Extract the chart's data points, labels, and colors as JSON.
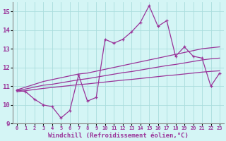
{
  "xlabel": "Windchill (Refroidissement éolien,°C)",
  "x_values": [
    0,
    1,
    2,
    3,
    4,
    5,
    6,
    7,
    8,
    9,
    10,
    11,
    12,
    13,
    14,
    15,
    16,
    17,
    18,
    19,
    20,
    21,
    22,
    23
  ],
  "main_line": [
    10.8,
    10.7,
    10.3,
    10.0,
    9.9,
    9.3,
    9.7,
    11.6,
    10.2,
    10.4,
    13.5,
    13.3,
    13.5,
    13.9,
    14.4,
    15.3,
    14.2,
    14.5,
    12.6,
    13.1,
    12.6,
    12.5,
    11.0,
    11.7
  ],
  "reg_upper": [
    10.8,
    10.95,
    11.1,
    11.25,
    11.35,
    11.45,
    11.55,
    11.65,
    11.7,
    11.8,
    11.9,
    12.0,
    12.1,
    12.2,
    12.3,
    12.4,
    12.5,
    12.6,
    12.7,
    12.8,
    12.9,
    13.0,
    13.05,
    13.1
  ],
  "reg_mid": [
    10.75,
    10.85,
    10.95,
    11.05,
    11.1,
    11.18,
    11.26,
    11.34,
    11.4,
    11.48,
    11.56,
    11.64,
    11.72,
    11.78,
    11.86,
    11.94,
    12.02,
    12.1,
    12.16,
    12.24,
    12.32,
    12.4,
    12.46,
    12.5
  ],
  "reg_lower": [
    10.7,
    10.76,
    10.82,
    10.88,
    10.93,
    10.98,
    11.03,
    11.08,
    11.12,
    11.17,
    11.22,
    11.27,
    11.32,
    11.36,
    11.41,
    11.46,
    11.51,
    11.56,
    11.6,
    11.65,
    11.7,
    11.75,
    11.79,
    11.82
  ],
  "line_color": "#993399",
  "bg_color": "#d4f5f5",
  "grid_color": "#aadddd",
  "ylim": [
    9.0,
    15.5
  ],
  "yticks": [
    9,
    10,
    11,
    12,
    13,
    14,
    15
  ],
  "tick_fontsize": 6.5,
  "xlabel_fontsize": 6.5
}
